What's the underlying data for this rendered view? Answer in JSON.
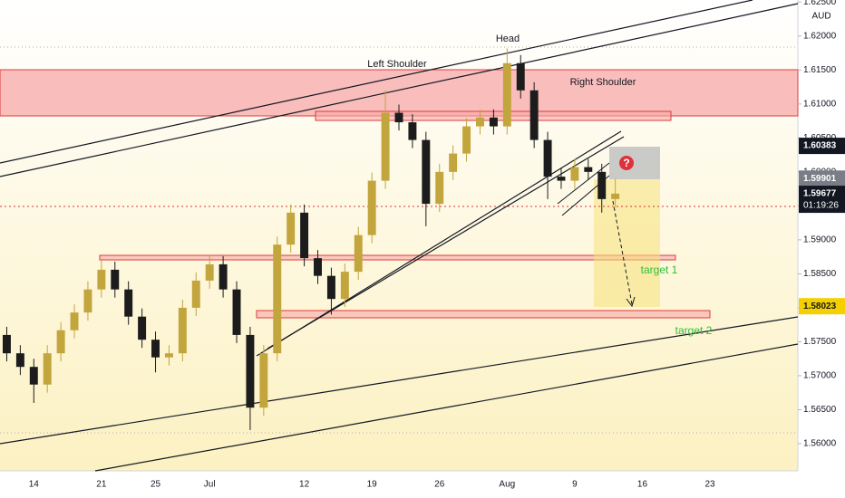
{
  "chart_data": {
    "type": "candlestick",
    "currency": "AUD",
    "up_color": "#c2a53c",
    "down_color": "#1c1c1c",
    "categories": [
      null,
      null,
      "14",
      null,
      null,
      null,
      null,
      "21",
      null,
      null,
      null,
      "25",
      null,
      null,
      null,
      "Jul",
      null,
      null,
      null,
      null,
      null,
      null,
      "12",
      null,
      null,
      null,
      null,
      "19",
      null,
      null,
      null,
      null,
      "26",
      null,
      null,
      null,
      null,
      "Aug",
      null,
      null,
      null,
      null,
      "9",
      null,
      null,
      null,
      null,
      "16",
      null,
      null,
      null,
      null,
      "23",
      null,
      null,
      null,
      null,
      null,
      null
    ],
    "open": [
      1.576,
      1.5733,
      1.5713,
      1.5687,
      1.5733,
      1.5767,
      1.5793,
      1.5827,
      1.5856,
      1.5827,
      1.5787,
      1.5753,
      1.5727,
      1.5733,
      1.58,
      1.584,
      1.5864,
      1.5827,
      1.576,
      1.5653,
      1.5733,
      1.5893,
      1.594,
      1.5873,
      1.5847,
      1.5813,
      1.5853,
      1.5907,
      1.5987,
      1.6087,
      1.6073,
      1.6047,
      1.5953,
      1.6,
      1.6027,
      1.6067,
      1.608,
      1.6067,
      1.616,
      1.612,
      1.6047,
      1.5993,
      1.5987,
      1.6007,
      1.6,
      1.596,
      null,
      null,
      null,
      null,
      null,
      null,
      null,
      null,
      null,
      null,
      null,
      null,
      null
    ],
    "high": [
      1.5772,
      1.5745,
      1.5725,
      1.5745,
      1.5779,
      1.5805,
      1.5839,
      1.5872,
      1.5868,
      1.5839,
      1.5799,
      1.5765,
      1.5745,
      1.5812,
      1.5852,
      1.5876,
      1.5876,
      1.5839,
      1.5772,
      1.5745,
      1.5905,
      1.5952,
      1.5952,
      1.5885,
      1.5859,
      1.5865,
      1.5919,
      1.5999,
      1.612,
      1.6099,
      1.6085,
      1.6059,
      1.6012,
      1.6039,
      1.6079,
      1.6092,
      1.6092,
      1.6182,
      1.6172,
      1.6132,
      1.6059,
      1.6005,
      1.6019,
      1.6019,
      1.6012,
      1.599,
      null,
      null,
      null,
      null,
      null,
      null,
      null,
      null,
      null,
      null,
      null,
      null,
      null
    ],
    "low": [
      1.5721,
      1.5701,
      1.566,
      1.5675,
      1.5721,
      1.5755,
      1.5781,
      1.5815,
      1.5815,
      1.5775,
      1.5741,
      1.5705,
      1.5715,
      1.5721,
      1.5788,
      1.5828,
      1.5815,
      1.5748,
      1.562,
      1.5641,
      1.5721,
      1.5881,
      1.5861,
      1.5835,
      1.579,
      1.5801,
      1.5841,
      1.5895,
      1.5975,
      1.6061,
      1.6035,
      1.592,
      1.5941,
      1.5988,
      1.6015,
      1.6055,
      1.6055,
      1.6055,
      1.6108,
      1.6035,
      1.596,
      1.5975,
      1.5975,
      1.5988,
      1.594,
      1.5948,
      null,
      null,
      null,
      null,
      null,
      null,
      null,
      null,
      null,
      null,
      null,
      null,
      null
    ],
    "close": [
      1.5733,
      1.5713,
      1.5687,
      1.5733,
      1.5767,
      1.5793,
      1.5827,
      1.5856,
      1.5827,
      1.5787,
      1.5753,
      1.5727,
      1.5733,
      1.58,
      1.584,
      1.5864,
      1.5827,
      1.576,
      1.5653,
      1.5733,
      1.5893,
      1.594,
      1.5873,
      1.5847,
      1.5813,
      1.5853,
      1.5907,
      1.5987,
      1.6087,
      1.6073,
      1.6047,
      1.5953,
      1.6,
      1.6027,
      1.6067,
      1.608,
      1.6067,
      1.616,
      1.612,
      1.6047,
      1.5993,
      1.5987,
      1.6007,
      1.6,
      1.596,
      1.5968,
      null,
      null,
      null,
      null,
      null,
      null,
      null,
      null,
      null,
      null,
      null,
      null,
      null
    ],
    "ylim": [
      1.556,
      1.6253
    ],
    "yticks": [
      {
        "value": 1.56,
        "label": "1.56000"
      },
      {
        "value": 1.565,
        "label": "1.56500"
      },
      {
        "value": 1.57,
        "label": "1.57000"
      },
      {
        "value": 1.575,
        "label": "1.57500"
      },
      {
        "value": 1.58,
        "label": "1.58000"
      },
      {
        "value": 1.585,
        "label": "1.58500"
      },
      {
        "value": 1.59,
        "label": "1.59000"
      },
      {
        "value": 1.595,
        "label": "1.59500"
      },
      {
        "value": 1.6,
        "label": "1.60000"
      },
      {
        "value": 1.605,
        "label": "1.60500"
      },
      {
        "value": 1.61,
        "label": "1.61000"
      },
      {
        "value": 1.615,
        "label": "1.61500"
      },
      {
        "value": 1.62,
        "label": "1.62000"
      },
      {
        "value": 1.625,
        "label": "1.62500"
      }
    ],
    "price_labels": [
      {
        "value": 1.60383,
        "label": "1.60383",
        "color": "#131722",
        "text_color": "#ffffff"
      },
      {
        "value": 1.59901,
        "label": "1.59901",
        "color": "#7a7d86",
        "text_color": "#ffffff"
      },
      {
        "value": 1.59677,
        "label": "1.59677",
        "countdown": "01:19:26",
        "color": "#131722",
        "text_color": "#ffffff"
      },
      {
        "value": 1.58023,
        "label": "1.58023",
        "color": "#f5d000",
        "text_color": "#131722"
      }
    ],
    "annotations": [
      "Head",
      "Left Shoulder",
      "Right Shoulder",
      "target 1",
      "target 2",
      "?"
    ]
  }
}
